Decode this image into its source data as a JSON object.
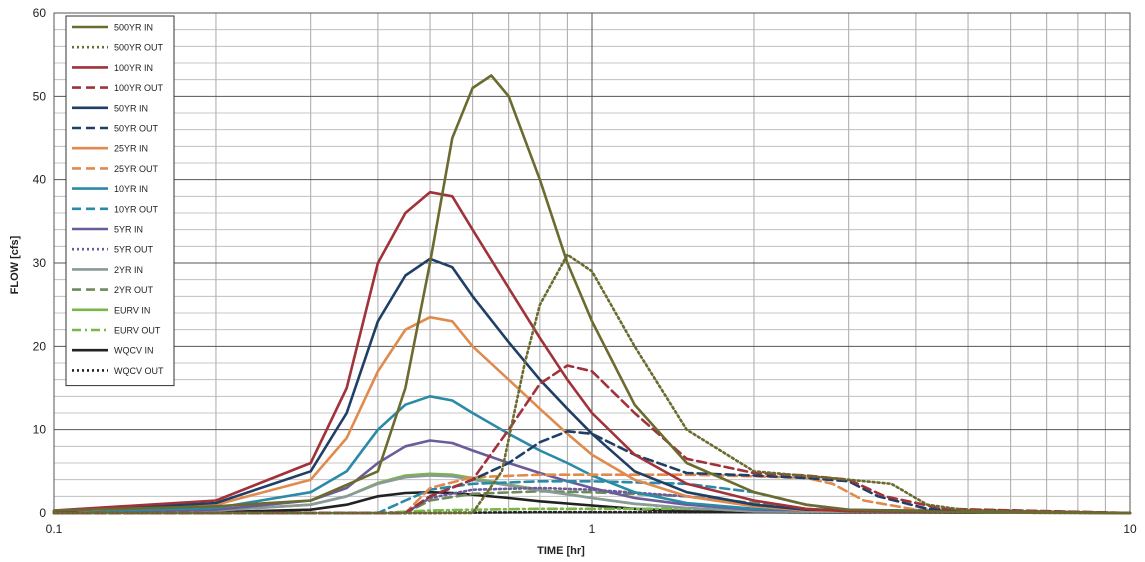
{
  "chart_data": {
    "type": "line",
    "xlabel": "TIME [hr]",
    "ylabel": "FLOW [cfs]",
    "x_scale": "log",
    "xlim": [
      0.1,
      10
    ],
    "ylim": [
      0,
      60
    ],
    "x_ticks": [
      "0.1",
      "1",
      "10"
    ],
    "y_ticks": [
      "0",
      "10",
      "20",
      "30",
      "40",
      "50",
      "60"
    ],
    "grid": true,
    "legend_position": "top-left",
    "series": [
      {
        "name": "500YR IN",
        "color": "#6b6b2f",
        "dash": "solid",
        "points": [
          [
            0.1,
            0.3
          ],
          [
            0.2,
            0.8
          ],
          [
            0.3,
            1.5
          ],
          [
            0.4,
            5
          ],
          [
            0.45,
            15
          ],
          [
            0.5,
            30
          ],
          [
            0.55,
            45
          ],
          [
            0.6,
            51
          ],
          [
            0.65,
            52.5
          ],
          [
            0.7,
            50
          ],
          [
            0.8,
            40
          ],
          [
            0.9,
            30
          ],
          [
            1.0,
            23
          ],
          [
            1.2,
            13
          ],
          [
            1.5,
            6
          ],
          [
            2.0,
            2.5
          ],
          [
            2.5,
            1
          ],
          [
            3,
            0.4
          ],
          [
            5,
            0.1
          ],
          [
            10,
            0
          ]
        ]
      },
      {
        "name": "500YR OUT",
        "color": "#6b6b2f",
        "dash": "dot",
        "points": [
          [
            0.1,
            0
          ],
          [
            0.6,
            0
          ],
          [
            0.68,
            5
          ],
          [
            0.75,
            18
          ],
          [
            0.8,
            25
          ],
          [
            0.9,
            31
          ],
          [
            1.0,
            29
          ],
          [
            1.2,
            20
          ],
          [
            1.5,
            10
          ],
          [
            2.0,
            5
          ],
          [
            3.0,
            4
          ],
          [
            3.6,
            3.5
          ],
          [
            4.2,
            1
          ],
          [
            5,
            0.3
          ],
          [
            10,
            0
          ]
        ]
      },
      {
        "name": "100YR IN",
        "color": "#a0323a",
        "dash": "solid",
        "points": [
          [
            0.1,
            0.3
          ],
          [
            0.2,
            1.5
          ],
          [
            0.3,
            6
          ],
          [
            0.35,
            15
          ],
          [
            0.4,
            30
          ],
          [
            0.45,
            36
          ],
          [
            0.5,
            38.5
          ],
          [
            0.55,
            38
          ],
          [
            0.6,
            34
          ],
          [
            0.7,
            27
          ],
          [
            0.8,
            21
          ],
          [
            0.9,
            16
          ],
          [
            1.0,
            12
          ],
          [
            1.2,
            7
          ],
          [
            1.5,
            3.5
          ],
          [
            2.0,
            1.5
          ],
          [
            2.5,
            0.5
          ],
          [
            3,
            0.2
          ],
          [
            10,
            0
          ]
        ]
      },
      {
        "name": "100YR OUT",
        "color": "#a0323a",
        "dash": "dash",
        "points": [
          [
            0.1,
            0
          ],
          [
            0.45,
            0
          ],
          [
            0.5,
            2
          ],
          [
            0.6,
            4
          ],
          [
            0.7,
            10
          ],
          [
            0.8,
            15.5
          ],
          [
            0.9,
            17.7
          ],
          [
            1.0,
            17
          ],
          [
            1.2,
            12
          ],
          [
            1.5,
            6.5
          ],
          [
            2.0,
            4.8
          ],
          [
            2.5,
            4.5
          ],
          [
            3.0,
            4
          ],
          [
            3.5,
            2
          ],
          [
            4.5,
            0.5
          ],
          [
            10,
            0
          ]
        ]
      },
      {
        "name": "50YR IN",
        "color": "#1f3f66",
        "dash": "solid",
        "points": [
          [
            0.1,
            0.2
          ],
          [
            0.2,
            1.2
          ],
          [
            0.3,
            5
          ],
          [
            0.35,
            12
          ],
          [
            0.4,
            23
          ],
          [
            0.45,
            28.5
          ],
          [
            0.5,
            30.5
          ],
          [
            0.55,
            29.5
          ],
          [
            0.6,
            26
          ],
          [
            0.7,
            20.5
          ],
          [
            0.8,
            16
          ],
          [
            0.9,
            12.5
          ],
          [
            1.0,
            9.5
          ],
          [
            1.2,
            5
          ],
          [
            1.5,
            2.5
          ],
          [
            2.0,
            1
          ],
          [
            2.5,
            0.4
          ],
          [
            10,
            0
          ]
        ]
      },
      {
        "name": "50YR OUT",
        "color": "#1f3f66",
        "dash": "dash",
        "points": [
          [
            0.1,
            0
          ],
          [
            0.45,
            0
          ],
          [
            0.5,
            2
          ],
          [
            0.6,
            4
          ],
          [
            0.7,
            6
          ],
          [
            0.8,
            8.5
          ],
          [
            0.9,
            9.8
          ],
          [
            1.0,
            9.5
          ],
          [
            1.2,
            7
          ],
          [
            1.5,
            4.8
          ],
          [
            2.0,
            4.5
          ],
          [
            2.5,
            4.2
          ],
          [
            3.0,
            3.8
          ],
          [
            3.4,
            2
          ],
          [
            4.2,
            0.5
          ],
          [
            10,
            0
          ]
        ]
      },
      {
        "name": "25YR IN",
        "color": "#e08a4e",
        "dash": "solid",
        "points": [
          [
            0.1,
            0.2
          ],
          [
            0.2,
            1
          ],
          [
            0.3,
            4
          ],
          [
            0.35,
            9
          ],
          [
            0.4,
            17
          ],
          [
            0.45,
            22
          ],
          [
            0.5,
            23.5
          ],
          [
            0.55,
            23
          ],
          [
            0.6,
            20
          ],
          [
            0.7,
            16
          ],
          [
            0.8,
            12.5
          ],
          [
            0.9,
            9.5
          ],
          [
            1.0,
            7
          ],
          [
            1.2,
            4
          ],
          [
            1.5,
            2
          ],
          [
            2.0,
            0.8
          ],
          [
            2.5,
            0.3
          ],
          [
            10,
            0
          ]
        ]
      },
      {
        "name": "25YR OUT",
        "color": "#e08a4e",
        "dash": "dash",
        "points": [
          [
            0.1,
            0
          ],
          [
            0.45,
            0
          ],
          [
            0.5,
            3
          ],
          [
            0.6,
            4.3
          ],
          [
            0.8,
            4.6
          ],
          [
            1.0,
            4.6
          ],
          [
            1.5,
            4.6
          ],
          [
            2.0,
            4.4
          ],
          [
            2.5,
            4.2
          ],
          [
            2.8,
            3.5
          ],
          [
            3.2,
            1.5
          ],
          [
            4.0,
            0.4
          ],
          [
            10,
            0
          ]
        ]
      },
      {
        "name": "10YR IN",
        "color": "#2b8aa8",
        "dash": "solid",
        "points": [
          [
            0.1,
            0.1
          ],
          [
            0.2,
            0.6
          ],
          [
            0.3,
            2.5
          ],
          [
            0.35,
            5
          ],
          [
            0.4,
            10
          ],
          [
            0.45,
            13
          ],
          [
            0.5,
            14
          ],
          [
            0.55,
            13.5
          ],
          [
            0.6,
            12
          ],
          [
            0.7,
            9.5
          ],
          [
            0.8,
            7.5
          ],
          [
            0.9,
            6
          ],
          [
            1.0,
            4.5
          ],
          [
            1.2,
            2.5
          ],
          [
            1.5,
            1.2
          ],
          [
            2.0,
            0.5
          ],
          [
            10,
            0
          ]
        ]
      },
      {
        "name": "10YR OUT",
        "color": "#2b8aa8",
        "dash": "dash",
        "points": [
          [
            0.1,
            0
          ],
          [
            0.4,
            0
          ],
          [
            0.45,
            1.5
          ],
          [
            0.5,
            2.8
          ],
          [
            0.6,
            3.5
          ],
          [
            0.8,
            3.8
          ],
          [
            1.0,
            3.8
          ],
          [
            1.5,
            3.5
          ],
          [
            2.0,
            2.5
          ],
          [
            2.5,
            1
          ],
          [
            3.0,
            0.3
          ],
          [
            10,
            0
          ]
        ]
      },
      {
        "name": "5YR IN",
        "color": "#6b5b9a",
        "dash": "solid",
        "points": [
          [
            0.1,
            0.1
          ],
          [
            0.2,
            0.4
          ],
          [
            0.3,
            1.5
          ],
          [
            0.35,
            3
          ],
          [
            0.4,
            6
          ],
          [
            0.45,
            8
          ],
          [
            0.5,
            8.7
          ],
          [
            0.55,
            8.4
          ],
          [
            0.6,
            7.5
          ],
          [
            0.7,
            6
          ],
          [
            0.8,
            4.8
          ],
          [
            0.9,
            3.8
          ],
          [
            1.0,
            3
          ],
          [
            1.2,
            1.8
          ],
          [
            1.5,
            1
          ],
          [
            2.0,
            0.4
          ],
          [
            10,
            0
          ]
        ]
      },
      {
        "name": "5YR OUT",
        "color": "#6b5b9a",
        "dash": "dot",
        "points": [
          [
            0.1,
            0
          ],
          [
            0.45,
            0
          ],
          [
            0.5,
            1.8
          ],
          [
            0.6,
            2.8
          ],
          [
            0.8,
            3
          ],
          [
            1.0,
            2.8
          ],
          [
            1.5,
            2
          ],
          [
            2.0,
            1
          ],
          [
            2.5,
            0.3
          ],
          [
            10,
            0
          ]
        ]
      },
      {
        "name": "2YR IN",
        "color": "#8a9a9a",
        "dash": "solid",
        "points": [
          [
            0.1,
            0
          ],
          [
            0.2,
            0.3
          ],
          [
            0.3,
            1
          ],
          [
            0.35,
            2
          ],
          [
            0.4,
            3.5
          ],
          [
            0.45,
            4.3
          ],
          [
            0.5,
            4.5
          ],
          [
            0.55,
            4.4
          ],
          [
            0.6,
            4
          ],
          [
            0.7,
            3.3
          ],
          [
            0.8,
            2.7
          ],
          [
            1.0,
            1.8
          ],
          [
            1.2,
            1.1
          ],
          [
            1.5,
            0.6
          ],
          [
            2.0,
            0.2
          ],
          [
            10,
            0
          ]
        ]
      },
      {
        "name": "2YR OUT",
        "color": "#6f8a5a",
        "dash": "dash",
        "points": [
          [
            0.1,
            0
          ],
          [
            0.45,
            0
          ],
          [
            0.5,
            1.5
          ],
          [
            0.6,
            2.3
          ],
          [
            0.8,
            2.6
          ],
          [
            1.0,
            2.5
          ],
          [
            1.5,
            2
          ],
          [
            2.0,
            1.2
          ],
          [
            2.5,
            0.4
          ],
          [
            10,
            0
          ]
        ]
      },
      {
        "name": "EURV IN",
        "color": "#7ab648",
        "dash": "solid",
        "points": [
          [
            0.1,
            0
          ],
          [
            0.2,
            0.3
          ],
          [
            0.3,
            1
          ],
          [
            0.35,
            2
          ],
          [
            0.4,
            3.6
          ],
          [
            0.45,
            4.5
          ],
          [
            0.5,
            4.7
          ],
          [
            0.55,
            4.6
          ],
          [
            0.6,
            4.2
          ],
          [
            0.7,
            3.4
          ],
          [
            0.8,
            2.8
          ],
          [
            1.0,
            1.8
          ],
          [
            1.2,
            1.1
          ],
          [
            1.5,
            0.6
          ],
          [
            2.0,
            0.2
          ],
          [
            10,
            0
          ]
        ]
      },
      {
        "name": "EURV OUT",
        "color": "#7ab648",
        "dash": "dashdot",
        "points": [
          [
            0.1,
            0
          ],
          [
            0.4,
            0
          ],
          [
            0.5,
            0.3
          ],
          [
            0.6,
            0.4
          ],
          [
            0.8,
            0.5
          ],
          [
            1.0,
            0.5
          ],
          [
            1.5,
            0.5
          ],
          [
            2.0,
            0.4
          ],
          [
            3.0,
            0.2
          ],
          [
            5.0,
            0.1
          ],
          [
            10,
            0
          ]
        ]
      },
      {
        "name": "WQCV IN",
        "color": "#222222",
        "dash": "solid",
        "points": [
          [
            0.1,
            0
          ],
          [
            0.2,
            0.1
          ],
          [
            0.3,
            0.4
          ],
          [
            0.35,
            1
          ],
          [
            0.4,
            2
          ],
          [
            0.45,
            2.4
          ],
          [
            0.5,
            2.5
          ],
          [
            0.55,
            2.4
          ],
          [
            0.6,
            2.2
          ],
          [
            0.7,
            1.8
          ],
          [
            0.8,
            1.4
          ],
          [
            1.0,
            0.9
          ],
          [
            1.2,
            0.5
          ],
          [
            1.5,
            0.2
          ],
          [
            2.0,
            0.1
          ],
          [
            10,
            0
          ]
        ]
      },
      {
        "name": "WQCV OUT",
        "color": "#222222",
        "dash": "dot",
        "points": [
          [
            0.1,
            0
          ],
          [
            0.5,
            0
          ],
          [
            0.6,
            0.05
          ],
          [
            0.8,
            0.1
          ],
          [
            1.0,
            0.1
          ],
          [
            2.0,
            0.1
          ],
          [
            5.0,
            0.05
          ],
          [
            10,
            0
          ]
        ]
      }
    ]
  }
}
